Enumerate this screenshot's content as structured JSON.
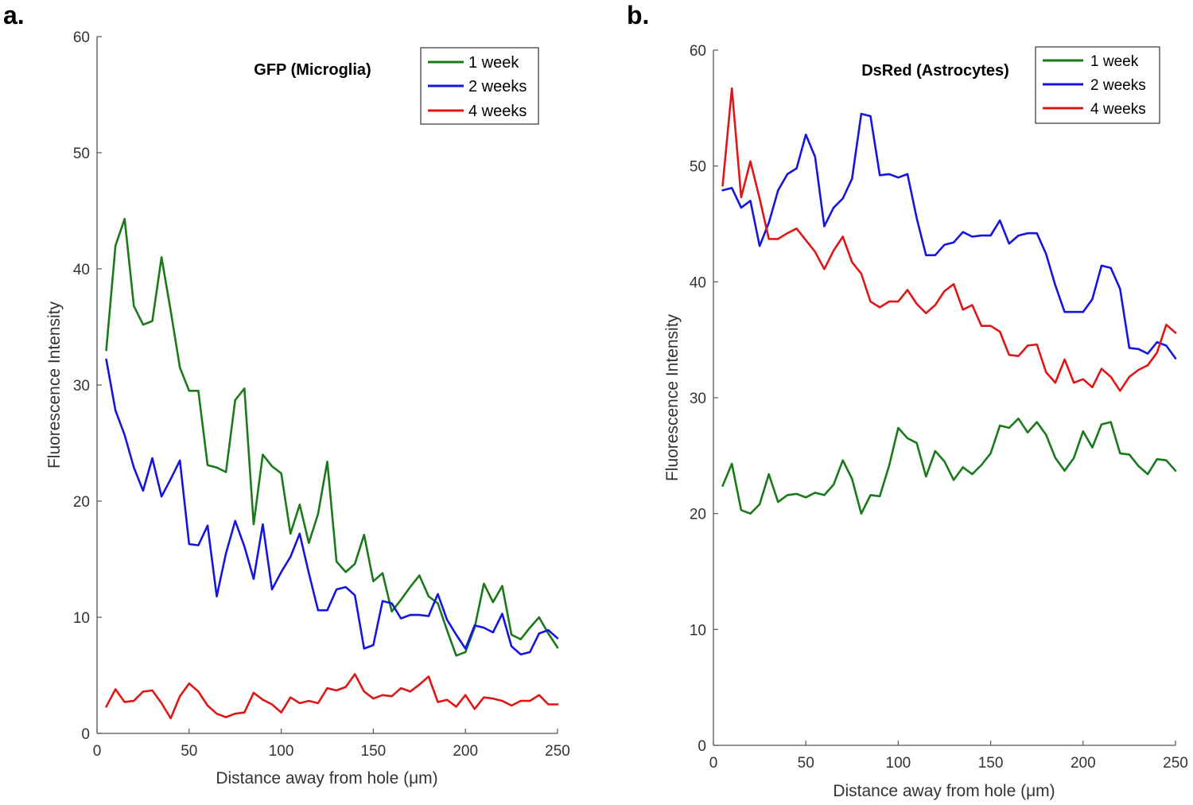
{
  "chart_data": [
    {
      "panel_label": "a.",
      "type": "line",
      "title": "GFP (Microglia)",
      "xlabel": "Distance away from hole (μm)",
      "ylabel": "Fluorescence Intensity",
      "xlim": [
        0,
        250
      ],
      "ylim": [
        0,
        60
      ],
      "xticks": [
        0,
        50,
        100,
        150,
        200,
        250
      ],
      "yticks": [
        0,
        10,
        20,
        30,
        40,
        50,
        60
      ],
      "xtick_labels": [
        "0",
        "50",
        "100",
        "150",
        "200",
        "250"
      ],
      "ytick_labels": [
        "0",
        "10",
        "20",
        "30",
        "40",
        "50",
        "60"
      ],
      "legend_position": "top-right",
      "x": [
        5,
        10,
        15,
        20,
        25,
        30,
        35,
        40,
        45,
        50,
        55,
        60,
        65,
        70,
        75,
        80,
        85,
        90,
        95,
        100,
        105,
        110,
        115,
        120,
        125,
        130,
        135,
        140,
        145,
        150,
        155,
        160,
        165,
        170,
        175,
        180,
        185,
        190,
        195,
        200,
        205,
        210,
        215,
        220,
        225,
        230,
        235,
        240,
        245,
        250
      ],
      "series": [
        {
          "name": "1 week",
          "color": "#1a7a1a",
          "values": [
            33,
            42,
            44.3,
            36.8,
            35.2,
            35.5,
            41,
            36.4,
            31.5,
            29.5,
            29.5,
            23.1,
            22.9,
            22.5,
            28.7,
            29.7,
            18,
            24,
            23,
            22.4,
            17.2,
            19.7,
            16.4,
            18.9,
            23.4,
            14.8,
            13.9,
            14.6,
            17.1,
            13.1,
            13.8,
            10.5,
            11.5,
            12.6,
            13.6,
            11.8,
            11.2,
            8.9,
            6.7,
            7,
            9.1,
            12.9,
            11.3,
            12.7,
            8.5,
            8.1,
            9.1,
            10,
            8.6,
            7.4
          ]
        },
        {
          "name": "2 weeks",
          "color": "#1515e0",
          "values": [
            32.2,
            27.8,
            25.7,
            22.9,
            20.9,
            23.7,
            20.4,
            21.9,
            23.5,
            16.3,
            16.2,
            17.9,
            11.8,
            15.5,
            18.3,
            16.1,
            13.3,
            18,
            12.4,
            13.9,
            15.2,
            17.2,
            13.8,
            10.6,
            10.6,
            12.4,
            12.6,
            11.9,
            7.3,
            7.6,
            11.4,
            11.2,
            9.9,
            10.2,
            10.2,
            10.1,
            12,
            9.8,
            8.5,
            7.3,
            9.3,
            9.1,
            8.7,
            10.3,
            7.5,
            6.8,
            7,
            8.6,
            8.9,
            8.2
          ]
        },
        {
          "name": "4 weeks",
          "color": "#e01515",
          "values": [
            2.3,
            3.8,
            2.7,
            2.8,
            3.6,
            3.7,
            2.6,
            1.3,
            3.2,
            4.3,
            3.6,
            2.4,
            1.7,
            1.4,
            1.7,
            1.8,
            3.5,
            2.9,
            2.5,
            1.8,
            3.1,
            2.6,
            2.8,
            2.6,
            3.9,
            3.7,
            4,
            5.1,
            3.6,
            3,
            3.3,
            3.2,
            3.9,
            3.6,
            4.2,
            4.9,
            2.7,
            2.9,
            2.3,
            3.3,
            2.1,
            3.1,
            3,
            2.8,
            2.4,
            2.8,
            2.8,
            3.3,
            2.5,
            2.5
          ]
        }
      ]
    },
    {
      "panel_label": "b.",
      "type": "line",
      "title": "DsRed (Astrocytes)",
      "xlabel": "Distance away from hole (μm)",
      "ylabel": "Fluorescence Intensity",
      "xlim": [
        0,
        250
      ],
      "ylim": [
        0,
        60
      ],
      "xticks": [
        0,
        50,
        100,
        150,
        200,
        250
      ],
      "yticks": [
        0,
        10,
        20,
        30,
        40,
        50,
        60
      ],
      "xtick_labels": [
        "0",
        "50",
        "100",
        "150",
        "200",
        "250"
      ],
      "ytick_labels": [
        "0",
        "10",
        "20",
        "30",
        "40",
        "50",
        "60"
      ],
      "legend_position": "top-right",
      "x": [
        5,
        10,
        15,
        20,
        25,
        30,
        35,
        40,
        45,
        50,
        55,
        60,
        65,
        70,
        75,
        80,
        85,
        90,
        95,
        100,
        105,
        110,
        115,
        120,
        125,
        130,
        135,
        140,
        145,
        150,
        155,
        160,
        165,
        170,
        175,
        180,
        185,
        190,
        195,
        200,
        205,
        210,
        215,
        220,
        225,
        230,
        235,
        240,
        245,
        250
      ],
      "series": [
        {
          "name": "1 week",
          "color": "#1a7a1a",
          "values": [
            22.4,
            24.3,
            20.3,
            20,
            20.8,
            23.4,
            21,
            21.6,
            21.7,
            21.4,
            21.8,
            21.6,
            22.5,
            24.6,
            23,
            20,
            21.6,
            21.5,
            24.1,
            27.4,
            26.5,
            26.1,
            23.2,
            25.4,
            24.5,
            22.9,
            24,
            23.4,
            24.2,
            25.2,
            27.6,
            27.4,
            28.2,
            27,
            27.9,
            26.8,
            24.8,
            23.7,
            24.8,
            27.1,
            25.7,
            27.7,
            27.9,
            25.2,
            25.1,
            24.1,
            23.4,
            24.7,
            24.6,
            23.7
          ]
        },
        {
          "name": "2 weeks",
          "color": "#1515e0",
          "values": [
            47.9,
            48.1,
            46.4,
            47,
            43.1,
            45.1,
            47.9,
            49.3,
            49.8,
            52.7,
            50.8,
            44.8,
            46.4,
            47.2,
            48.9,
            54.5,
            54.3,
            49.2,
            49.3,
            49,
            49.3,
            45.5,
            42.3,
            42.3,
            43.2,
            43.4,
            44.3,
            43.9,
            44,
            44,
            45.3,
            43.3,
            44,
            44.2,
            44.2,
            42.4,
            39.7,
            37.4,
            37.4,
            37.4,
            38.5,
            41.4,
            41.2,
            39.4,
            34.3,
            34.2,
            33.8,
            34.8,
            34.5,
            33.4
          ]
        },
        {
          "name": "4 weeks",
          "color": "#e01515",
          "values": [
            48.3,
            56.7,
            47.3,
            50.4,
            47.2,
            43.7,
            43.7,
            44.2,
            44.6,
            43.6,
            42.6,
            41.1,
            42.7,
            43.9,
            41.7,
            40.7,
            38.3,
            37.8,
            38.3,
            38.3,
            39.3,
            38.1,
            37.3,
            38,
            39.2,
            39.8,
            37.6,
            38,
            36.2,
            36.2,
            35.7,
            33.7,
            33.6,
            34.5,
            34.6,
            32.2,
            31.3,
            33.3,
            31.3,
            31.6,
            30.9,
            32.5,
            31.8,
            30.6,
            31.8,
            32.4,
            32.8,
            33.9,
            36.3,
            35.6
          ]
        }
      ]
    }
  ]
}
